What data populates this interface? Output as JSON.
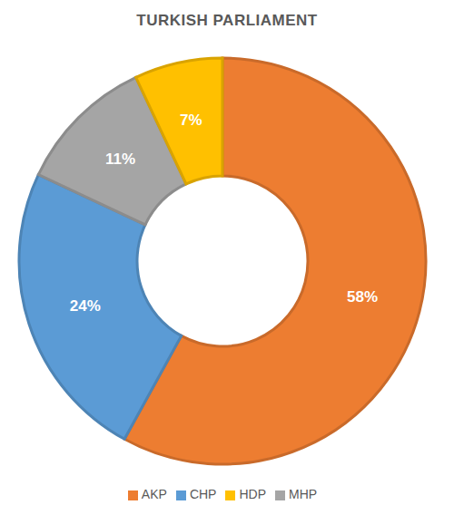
{
  "chart_data": {
    "type": "pie",
    "title": "TURKISH PARLIAMENT",
    "categories": [
      "AKP",
      "CHP",
      "MHP",
      "HDP"
    ],
    "values": [
      58,
      24,
      11,
      7
    ],
    "value_labels": [
      "58%",
      "24%",
      "11%",
      "7%"
    ],
    "colors": [
      "#ED7D31",
      "#5B9BD5",
      "#A5A5A5",
      "#FFC000"
    ],
    "data_labels": true,
    "legend": "bottom"
  }
}
